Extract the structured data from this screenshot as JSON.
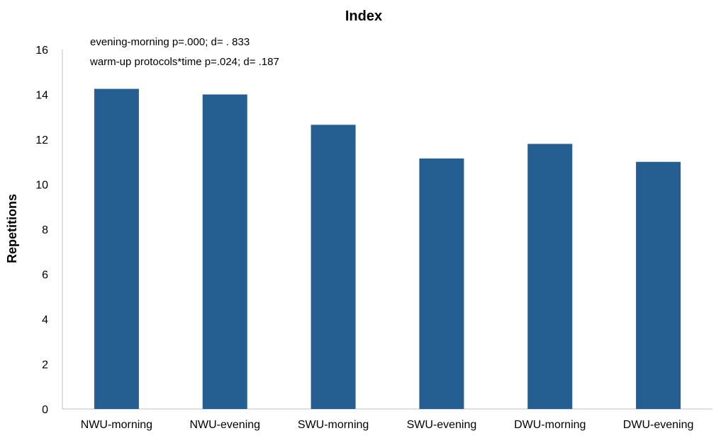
{
  "chart_data": {
    "type": "bar",
    "title": "Index",
    "xlabel": "",
    "ylabel": "Repetitions",
    "categories": [
      "NWU-morning",
      "NWU-evening",
      "SWU-morning",
      "SWU-evening",
      "DWU-morning",
      "DWU-evening"
    ],
    "values": [
      14.25,
      14.0,
      12.65,
      11.15,
      11.8,
      11.0
    ],
    "ylim": [
      0,
      16
    ],
    "yticks": [
      0,
      2,
      4,
      6,
      8,
      10,
      12,
      14,
      16
    ],
    "grid": false,
    "legend": "none",
    "bar_color": "#255e91",
    "annotations": [
      "evening-morning p=.000; d= . 833",
      "warm-up protocols*time p=.024; d=  .187"
    ]
  }
}
